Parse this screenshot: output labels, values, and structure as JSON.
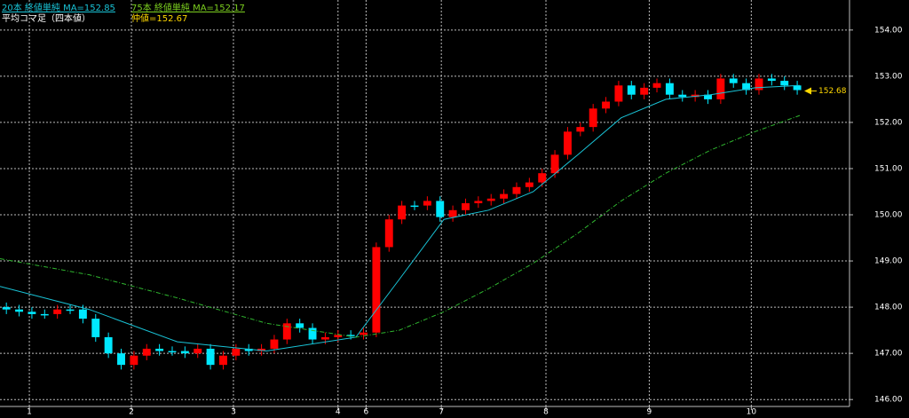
{
  "chart_data": {
    "type": "candlestick",
    "xlim": [
      0,
      66.6
    ],
    "ylim": [
      145.85,
      154.65
    ],
    "yticks": [
      {
        "value": 146,
        "label": "146.00"
      },
      {
        "value": 147,
        "label": "147.00"
      },
      {
        "value": 148,
        "label": "148.00"
      },
      {
        "value": 149,
        "label": "149.00"
      },
      {
        "value": 150,
        "label": "150.00"
      },
      {
        "value": 151,
        "label": "151.00"
      },
      {
        "value": 152,
        "label": "152.00"
      },
      {
        "value": 153,
        "label": "153.00"
      },
      {
        "value": 154,
        "label": "154.00"
      }
    ],
    "xticks": [
      {
        "value": 2.3,
        "label": "1"
      },
      {
        "value": 10.3,
        "label": "2"
      },
      {
        "value": 18.3,
        "label": "3"
      },
      {
        "value": 26.5,
        "label": "4"
      },
      {
        "value": 28.7,
        "label": "6"
      },
      {
        "value": 34.6,
        "label": "7"
      },
      {
        "value": 42.8,
        "label": "8"
      },
      {
        "value": 50.9,
        "label": "9"
      },
      {
        "value": 58.9,
        "label": "10"
      }
    ],
    "grid": true,
    "series": [
      {
        "name": "平均コマ足（四本値）",
        "type": "candlestick",
        "up_color": "#ff0000",
        "down_color": "#00e8ff",
        "x": [
          0.5,
          1.5,
          2.5,
          3.5,
          4.5,
          5.5,
          6.5,
          7.5,
          8.5,
          9.5,
          10.5,
          11.5,
          12.5,
          13.5,
          14.5,
          15.5,
          16.5,
          17.5,
          18.5,
          19.5,
          20.5,
          21.5,
          22.5,
          23.5,
          24.5,
          25.5,
          26.5,
          27.5,
          28.5,
          29.5,
          30.5,
          31.5,
          32.5,
          33.5,
          34.5,
          35.5,
          36.5,
          37.5,
          38.5,
          39.5,
          40.5,
          41.5,
          42.5,
          43.5,
          44.5,
          45.5,
          46.5,
          47.5,
          48.5,
          49.5,
          50.5,
          51.5,
          52.5,
          53.5,
          54.5,
          55.5,
          56.5,
          57.5,
          58.5,
          59.5,
          60.5,
          61.5,
          62.5
        ],
        "open": [
          148.0,
          147.95,
          147.9,
          147.85,
          147.85,
          147.95,
          147.95,
          147.75,
          147.35,
          147.0,
          146.75,
          146.95,
          147.1,
          147.05,
          147.05,
          147.0,
          147.1,
          146.75,
          146.95,
          147.1,
          147.05,
          147.1,
          147.3,
          147.65,
          147.55,
          147.3,
          147.35,
          147.4,
          147.4,
          147.45,
          149.3,
          149.9,
          150.2,
          150.2,
          150.3,
          149.95,
          150.1,
          150.25,
          150.3,
          150.35,
          150.45,
          150.6,
          150.7,
          150.9,
          151.3,
          151.8,
          151.9,
          152.3,
          152.45,
          152.8,
          152.6,
          152.75,
          152.85,
          152.6,
          152.55,
          152.6,
          152.5,
          152.95,
          152.85,
          152.7,
          152.95,
          152.9,
          152.8
        ],
        "high": [
          148.1,
          148.05,
          148.0,
          147.95,
          148.05,
          148.05,
          148.05,
          147.85,
          147.45,
          147.1,
          147.05,
          147.2,
          147.2,
          147.15,
          147.15,
          147.2,
          147.2,
          147.05,
          147.2,
          147.2,
          147.2,
          147.4,
          147.75,
          147.75,
          147.65,
          147.45,
          147.5,
          147.5,
          147.55,
          149.4,
          150.0,
          150.3,
          150.3,
          150.4,
          150.4,
          150.2,
          150.35,
          150.4,
          150.45,
          150.55,
          150.7,
          150.8,
          151.0,
          151.4,
          151.9,
          152.0,
          152.4,
          152.55,
          152.9,
          152.9,
          152.85,
          152.95,
          152.95,
          152.7,
          152.7,
          152.7,
          153.05,
          153.05,
          152.95,
          153.05,
          153.05,
          153.0,
          152.9
        ],
        "low": [
          147.85,
          147.8,
          147.75,
          147.75,
          147.75,
          147.85,
          147.65,
          147.25,
          146.9,
          146.65,
          146.65,
          146.85,
          146.95,
          146.95,
          146.9,
          146.9,
          146.65,
          146.65,
          146.85,
          146.95,
          146.95,
          147.0,
          147.2,
          147.45,
          147.2,
          147.2,
          147.25,
          147.3,
          147.3,
          147.35,
          149.2,
          149.8,
          150.1,
          150.1,
          149.85,
          149.85,
          150.0,
          150.15,
          150.2,
          150.25,
          150.35,
          150.5,
          150.6,
          150.8,
          151.2,
          151.7,
          151.8,
          152.2,
          152.35,
          152.5,
          152.5,
          152.65,
          152.5,
          152.45,
          152.45,
          152.4,
          152.4,
          152.75,
          152.6,
          152.6,
          152.8,
          152.7,
          152.6
        ],
        "close": [
          147.95,
          147.9,
          147.85,
          147.85,
          147.95,
          147.95,
          147.75,
          147.35,
          147.0,
          146.75,
          146.95,
          147.1,
          147.05,
          147.05,
          147.0,
          147.1,
          146.75,
          146.95,
          147.1,
          147.05,
          147.1,
          147.3,
          147.65,
          147.55,
          147.3,
          147.35,
          147.4,
          147.4,
          147.45,
          149.3,
          149.9,
          150.2,
          150.2,
          150.3,
          149.95,
          150.1,
          150.25,
          150.3,
          150.35,
          150.45,
          150.6,
          150.7,
          150.9,
          151.3,
          151.8,
          151.9,
          152.3,
          152.45,
          152.8,
          152.6,
          152.75,
          152.85,
          152.6,
          152.55,
          152.6,
          152.5,
          152.95,
          152.85,
          152.7,
          152.95,
          152.9,
          152.8,
          152.7
        ]
      },
      {
        "name": "20本 終値単純 MA=152.85",
        "type": "line",
        "color": "#19c3d6",
        "dash": false,
        "x": [
          0,
          7,
          13.9,
          20.9,
          27.9,
          31.3,
          34.8,
          38.3,
          41.8,
          45.3,
          48.7,
          52.2,
          55.7,
          59.2,
          62.7
        ],
        "values": [
          148.45,
          147.95,
          147.25,
          147.05,
          147.35,
          148.6,
          149.9,
          150.1,
          150.5,
          151.3,
          152.1,
          152.5,
          152.6,
          152.75,
          152.8
        ]
      },
      {
        "name": "75本 終値単純 MA=152.17",
        "type": "line",
        "color": "#2fb52f",
        "dash": true,
        "x": [
          0,
          7,
          13.9,
          20.9,
          27.9,
          31.3,
          34.8,
          38.3,
          41.8,
          45.3,
          48.7,
          52.2,
          55.7,
          59.2,
          62.7
        ],
        "values": [
          149.05,
          148.7,
          148.2,
          147.65,
          147.35,
          147.5,
          147.9,
          148.4,
          148.95,
          149.6,
          150.3,
          150.9,
          151.4,
          151.8,
          152.15
        ]
      }
    ],
    "mid_price_label": "仲値=152.67",
    "current_price": 152.68,
    "current_price_color": "#ffd800"
  }
}
